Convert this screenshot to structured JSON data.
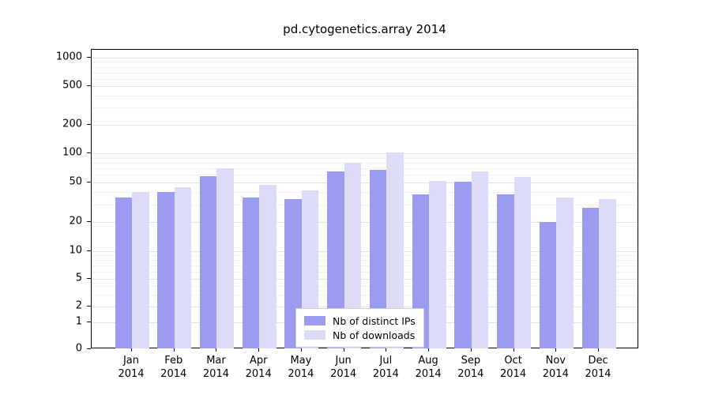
{
  "chart_data": {
    "type": "bar",
    "title": "pd.cytogenetics.array 2014",
    "yscale": "symlog",
    "y_ticks": [
      0,
      1,
      2,
      5,
      10,
      20,
      50,
      100,
      200,
      500,
      1000
    ],
    "ylim": [
      0,
      1000
    ],
    "grid": true,
    "legend_position": "lower center inside",
    "categories": [
      "Jan",
      "Feb",
      "Mar",
      "Apr",
      "May",
      "Jun",
      "Jul",
      "Aug",
      "Sep",
      "Oct",
      "Nov",
      "Dec"
    ],
    "category_year": "2014",
    "series": [
      {
        "name": "Nb of distinct IPs",
        "color": "#9b9bef",
        "values": [
          35,
          40,
          58,
          35,
          34,
          65,
          68,
          38,
          51,
          38,
          20,
          28
        ]
      },
      {
        "name": "Nb of downloads",
        "color": "#dcdcf9",
        "values": [
          40,
          45,
          70,
          47,
          42,
          80,
          102,
          52,
          65,
          57,
          35,
          34
        ]
      }
    ]
  }
}
